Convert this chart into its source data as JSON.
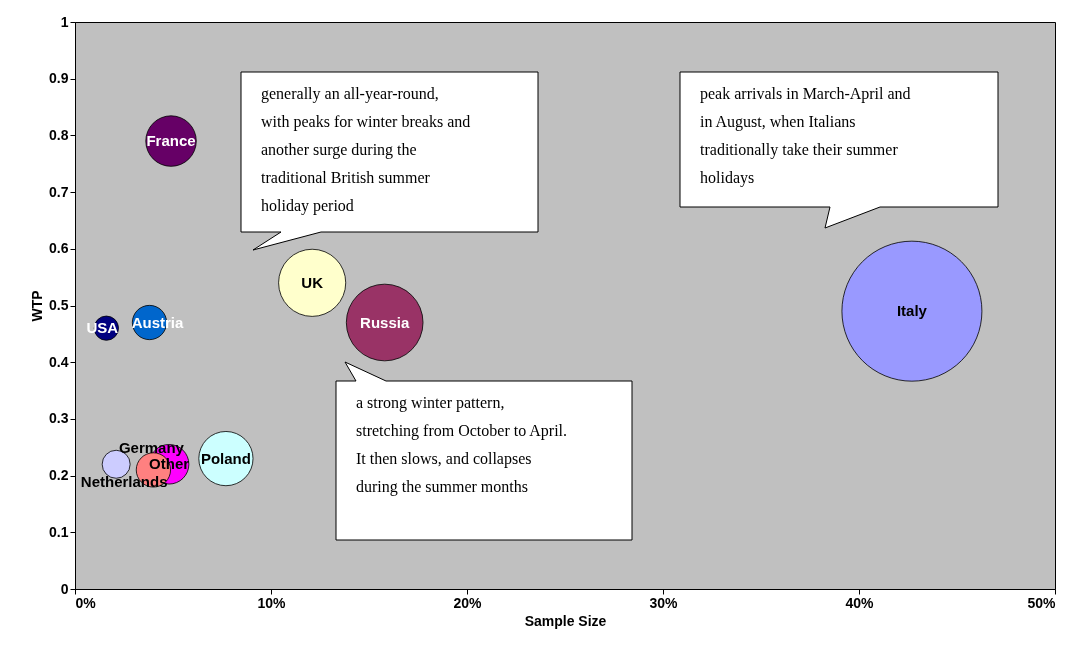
{
  "chart_data": {
    "type": "bubble",
    "xlabel": "Sample Size",
    "ylabel": "WTP",
    "xlim": [
      0,
      50
    ],
    "xticks": [
      {
        "value": 0,
        "label": "0%"
      },
      {
        "value": 10,
        "label": "10%"
      },
      {
        "value": 20,
        "label": "20%"
      },
      {
        "value": 30,
        "label": "30%"
      },
      {
        "value": 40,
        "label": "40%"
      },
      {
        "value": 50,
        "label": "50%"
      }
    ],
    "ylim": [
      0,
      1
    ],
    "yticks": [
      0,
      0.1,
      0.2,
      0.3,
      0.4,
      0.5,
      0.6,
      0.7,
      0.8,
      0.9,
      1
    ],
    "grid": false,
    "legend": false,
    "series": [
      {
        "name": "France",
        "color": "#660066",
        "x": [
          4.9
        ],
        "values": [
          0.79
        ],
        "sizes": [
          0.13
        ]
      },
      {
        "name": "USA",
        "color": "#000080",
        "x": [
          1.6
        ],
        "values": [
          0.46
        ],
        "sizes": [
          0.03
        ]
      },
      {
        "name": "Austria",
        "color": "#0066cc",
        "x": [
          3.8
        ],
        "values": [
          0.47
        ],
        "sizes": [
          0.06
        ]
      },
      {
        "name": "UK",
        "color": "#ffffcc",
        "x": [
          12.1
        ],
        "values": [
          0.54
        ],
        "sizes": [
          0.23
        ]
      },
      {
        "name": "Russia",
        "color": "#993366",
        "x": [
          15.8
        ],
        "values": [
          0.47
        ],
        "sizes": [
          0.3
        ]
      },
      {
        "name": "Italy",
        "color": "#9999ff",
        "x": [
          42.7
        ],
        "values": [
          0.49
        ],
        "sizes": [
          1
        ]
      },
      {
        "name": "Netherlands",
        "color": "#ccccff",
        "x": [
          2.1
        ],
        "values": [
          0.22
        ],
        "sizes": [
          0.04
        ]
      },
      {
        "name": "Germany",
        "color": "#ff8080",
        "x": [
          4.0
        ],
        "values": [
          0.21
        ],
        "sizes": [
          0.06
        ]
      },
      {
        "name": "Other",
        "color": "#ff00ff",
        "x": [
          4.8
        ],
        "values": [
          0.22
        ],
        "sizes": [
          0.08
        ]
      },
      {
        "name": "Poland",
        "color": "#ccffff",
        "x": [
          7.7
        ],
        "values": [
          0.23
        ],
        "sizes": [
          0.15
        ]
      }
    ],
    "annotations": [
      "generally an all-year-round, with peaks for winter breaks and another surge during the traditional British summer holiday period",
      "a strong winter pattern, stretching from October to April. It then slows, and collapses during the summer months",
      "peak arrivals in March-April and in August, when Italians traditionally take their summer holidays"
    ]
  }
}
